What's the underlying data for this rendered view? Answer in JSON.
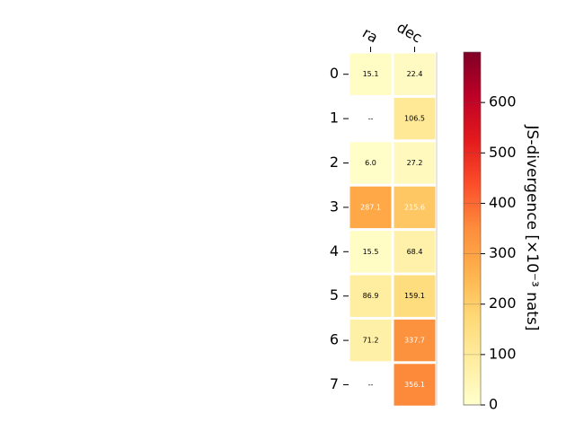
{
  "chart_data": {
    "type": "heatmap",
    "columns": [
      "ra",
      "dec"
    ],
    "rows": [
      "0",
      "1",
      "2",
      "3",
      "4",
      "5",
      "6",
      "7"
    ],
    "values": [
      [
        15.1,
        22.4
      ],
      [
        null,
        106.5
      ],
      [
        6.0,
        27.2
      ],
      [
        287.1,
        215.6
      ],
      [
        15.5,
        68.4
      ],
      [
        86.9,
        159.1
      ],
      [
        71.2,
        337.7
      ],
      [
        null,
        356.1
      ]
    ],
    "cell_labels": [
      [
        "15.1",
        "22.4"
      ],
      [
        "--",
        "106.5"
      ],
      [
        "6.0",
        "27.2"
      ],
      [
        "287.1",
        "215.6"
      ],
      [
        "15.5",
        "68.4"
      ],
      [
        "86.9",
        "159.1"
      ],
      [
        "71.2",
        "337.7"
      ],
      [
        "--",
        "356.1"
      ]
    ],
    "colorbar": {
      "label": "JS-divergence [×10⁻³ nats]",
      "range": [
        0,
        700
      ],
      "ticks": [
        0,
        100,
        200,
        300,
        400,
        500,
        600
      ],
      "colormap": "YlOrRd"
    }
  }
}
